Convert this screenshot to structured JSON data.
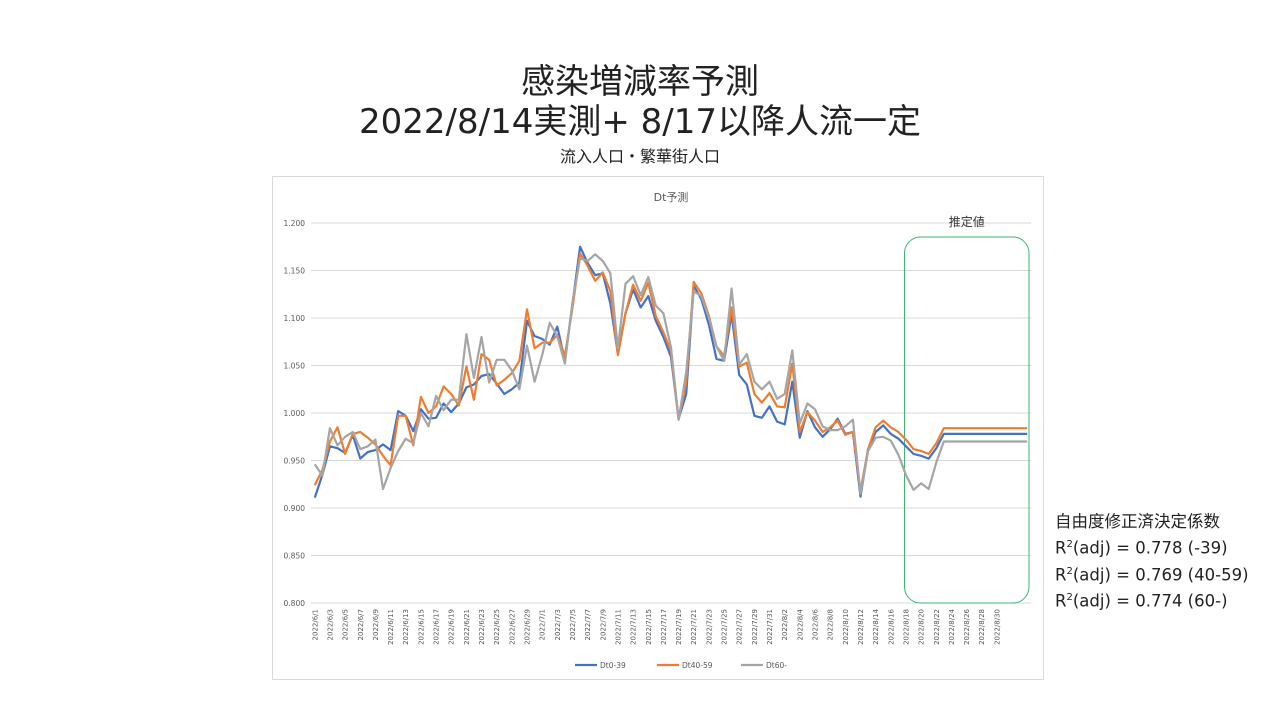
{
  "title_line1": "感染増減率予測",
  "title_line2": "2022/8/14実測+ 8/17以降人流一定",
  "subtitle": "流入人口・繁華街人口",
  "estimate_label": "推定値",
  "stats": {
    "heading": "自由度修正済決定係数",
    "lines": [
      {
        "prefix": "R",
        "sup": "2",
        "text": "(adj) = 0.778 (-39)"
      },
      {
        "prefix": "R",
        "sup": "2",
        "text": "(adj) = 0.769 (40-59)"
      },
      {
        "prefix": "R",
        "sup": "2",
        "text": "(adj) = 0.774 (60-)"
      }
    ]
  },
  "chart_data": {
    "type": "line",
    "title": "Dt予測",
    "ylim": [
      0.8,
      1.2
    ],
    "yticks": [
      "0.800",
      "0.850",
      "0.900",
      "0.950",
      "1.000",
      "1.050",
      "1.100",
      "1.150",
      "1.200"
    ],
    "xtick_labels": [
      "2022/6/1",
      "2022/6/3",
      "2022/6/5",
      "2022/6/7",
      "2022/6/9",
      "2022/6/11",
      "2022/6/13",
      "2022/6/15",
      "2022/6/17",
      "2022/6/19",
      "2022/6/21",
      "2022/6/23",
      "2022/6/25",
      "2022/6/27",
      "2022/6/29",
      "2022/7/1",
      "2022/7/3",
      "2022/7/5",
      "2022/7/7",
      "2022/7/9",
      "2022/7/11",
      "2022/7/13",
      "2022/7/15",
      "2022/7/17",
      "2022/7/19",
      "2022/7/21",
      "2022/7/23",
      "2022/7/25",
      "2022/7/27",
      "2022/7/29",
      "2022/7/31",
      "2022/8/2",
      "2022/8/4",
      "2022/8/6",
      "2022/8/8",
      "2022/8/10",
      "2022/8/12",
      "2022/8/14",
      "2022/8/16",
      "2022/8/18",
      "2022/8/20",
      "2022/8/22",
      "2022/8/24",
      "2022/8/26",
      "2022/8/28",
      "2022/8/30"
    ],
    "grid": true,
    "legend_position": "bottom",
    "series": [
      {
        "name": "Dt0-39",
        "color": "#4472C4",
        "values": [
          0.911,
          0.935,
          0.965,
          0.963,
          0.958,
          0.977,
          0.952,
          0.959,
          0.961,
          0.967,
          0.961,
          1.002,
          0.997,
          0.981,
          1.004,
          0.994,
          0.995,
          1.01,
          1.001,
          1.01,
          1.027,
          1.03,
          1.039,
          1.041,
          1.031,
          1.02,
          1.025,
          1.032,
          1.097,
          1.081,
          1.078,
          1.072,
          1.091,
          1.055,
          1.115,
          1.175,
          1.158,
          1.145,
          1.147,
          1.115,
          1.062,
          1.105,
          1.13,
          1.111,
          1.123,
          1.097,
          1.08,
          1.059,
          0.994,
          1.02,
          1.134,
          1.12,
          1.093,
          1.057,
          1.055,
          1.104,
          1.04,
          1.03,
          0.997,
          0.995,
          1.007,
          0.991,
          0.988,
          1.033,
          0.974,
          1.002,
          0.985,
          0.975,
          0.983,
          0.994,
          0.978,
          0.98,
          0.912,
          0.962,
          0.98,
          0.987,
          0.978,
          0.973,
          0.965,
          0.957,
          0.955,
          0.952,
          0.963,
          0.978,
          0.978,
          0.978,
          0.978,
          0.978,
          0.978,
          0.978,
          0.978,
          0.978,
          0.978,
          0.978,
          0.978
        ]
      },
      {
        "name": "Dt40-59",
        "color": "#ED7D31",
        "values": [
          0.924,
          0.94,
          0.97,
          0.985,
          0.957,
          0.978,
          0.98,
          0.974,
          0.967,
          0.955,
          0.945,
          0.997,
          0.997,
          0.966,
          1.017,
          1.0,
          1.007,
          1.028,
          1.02,
          1.008,
          1.049,
          1.014,
          1.062,
          1.056,
          1.029,
          1.035,
          1.042,
          1.055,
          1.109,
          1.068,
          1.074,
          1.074,
          1.082,
          1.06,
          1.111,
          1.168,
          1.155,
          1.139,
          1.148,
          1.128,
          1.061,
          1.105,
          1.135,
          1.118,
          1.137,
          1.102,
          1.085,
          1.065,
          0.993,
          1.032,
          1.138,
          1.126,
          1.102,
          1.07,
          1.06,
          1.111,
          1.049,
          1.053,
          1.02,
          1.011,
          1.021,
          1.007,
          1.006,
          1.052,
          0.98,
          1.001,
          0.992,
          0.98,
          0.985,
          0.992,
          0.977,
          0.98,
          0.918,
          0.962,
          0.985,
          0.992,
          0.985,
          0.98,
          0.972,
          0.962,
          0.96,
          0.957,
          0.968,
          0.984,
          0.984,
          0.984,
          0.984,
          0.984,
          0.984,
          0.984,
          0.984,
          0.984,
          0.984,
          0.984,
          0.984
        ]
      },
      {
        "name": "Dt60-",
        "color": "#A5A5A5",
        "values": [
          0.946,
          0.934,
          0.984,
          0.966,
          0.975,
          0.98,
          0.962,
          0.965,
          0.972,
          0.92,
          0.942,
          0.96,
          0.973,
          0.968,
          1.0,
          0.986,
          1.018,
          1.003,
          1.014,
          1.014,
          1.083,
          1.037,
          1.08,
          1.032,
          1.056,
          1.056,
          1.045,
          1.025,
          1.071,
          1.033,
          1.061,
          1.095,
          1.081,
          1.052,
          1.117,
          1.163,
          1.16,
          1.167,
          1.16,
          1.147,
          1.068,
          1.136,
          1.144,
          1.124,
          1.143,
          1.113,
          1.105,
          1.069,
          0.993,
          1.043,
          1.128,
          1.123,
          1.1,
          1.07,
          1.055,
          1.131,
          1.051,
          1.062,
          1.033,
          1.025,
          1.033,
          1.015,
          1.02,
          1.066,
          0.989,
          1.01,
          1.004,
          0.986,
          0.982,
          0.982,
          0.986,
          0.993,
          0.915,
          0.96,
          0.974,
          0.975,
          0.971,
          0.956,
          0.935,
          0.919,
          0.926,
          0.92,
          0.948,
          0.97,
          0.97,
          0.97,
          0.97,
          0.97,
          0.97,
          0.97,
          0.97,
          0.97,
          0.97,
          0.97,
          0.97
        ]
      }
    ]
  }
}
